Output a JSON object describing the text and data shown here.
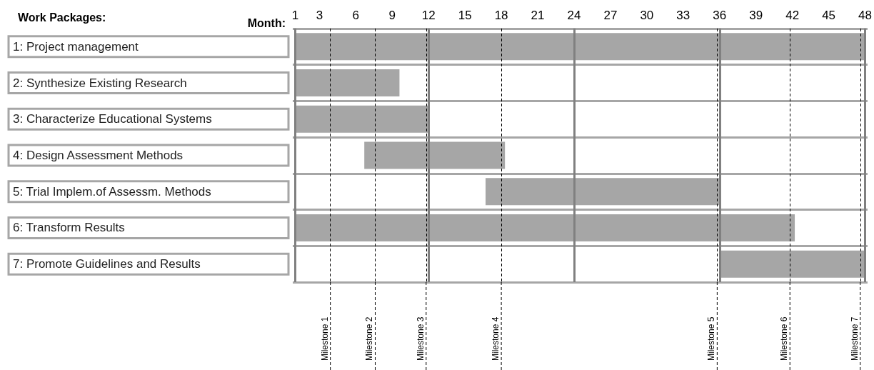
{
  "chart_data": {
    "type": "bar",
    "orientation": "horizontal",
    "xlabel": "Month:",
    "ylabel": "Work Packages:",
    "categories": [
      "1: Project management",
      "2: Synthesize Existing Research",
      "3: Characterize Educational Systems",
      "4: Design Assessment Methods",
      "5: Trial Implem.of Assessm. Methods",
      "6: Transform Results",
      "7: Promote Guidelines and Results"
    ],
    "base": [
      1,
      1,
      1,
      6.7,
      16.7,
      1,
      36
    ],
    "values": [
      47,
      8.6,
      11,
      11.6,
      19.3,
      41.2,
      12
    ],
    "color": "#a6a6a6",
    "xlim": [
      0.8,
      48.2
    ],
    "xticks": [
      1,
      3,
      6,
      9,
      12,
      15,
      18,
      21,
      24,
      27,
      30,
      33,
      36,
      39,
      42,
      45,
      48
    ],
    "grid": "y",
    "ref_lines": [
      {
        "axis": "x",
        "value": 1,
        "label": null,
        "color": "#808080",
        "line_style": "solid"
      },
      {
        "axis": "x",
        "value": 12,
        "label": null,
        "color": "#808080",
        "line_style": "solid"
      },
      {
        "axis": "x",
        "value": 24,
        "label": null,
        "color": "#808080",
        "line_style": "solid"
      },
      {
        "axis": "x",
        "value": 36,
        "label": null,
        "color": "#808080",
        "line_style": "solid"
      },
      {
        "axis": "x",
        "value": 48,
        "label": null,
        "color": "#808080",
        "line_style": "solid"
      },
      {
        "axis": "x",
        "value": 3.9,
        "label": "Milestone 1",
        "color": "#000000",
        "line_style": "dashed"
      },
      {
        "axis": "x",
        "value": 7.6,
        "label": "Milestone 2",
        "color": "#000000",
        "line_style": "dashed"
      },
      {
        "axis": "x",
        "value": 11.8,
        "label": "Milestone 3",
        "color": "#000000",
        "line_style": "dashed"
      },
      {
        "axis": "x",
        "value": 18,
        "label": "Milestone 4",
        "color": "#000000",
        "line_style": "dashed"
      },
      {
        "axis": "x",
        "value": 35.8,
        "label": "Milestone 5",
        "color": "#000000",
        "line_style": "dashed"
      },
      {
        "axis": "x",
        "value": 41.8,
        "label": "Milestone 6",
        "color": "#000000",
        "line_style": "dashed"
      },
      {
        "axis": "x",
        "value": 47.6,
        "label": "Milestone 7",
        "color": "#000000",
        "line_style": "dashed"
      }
    ]
  }
}
